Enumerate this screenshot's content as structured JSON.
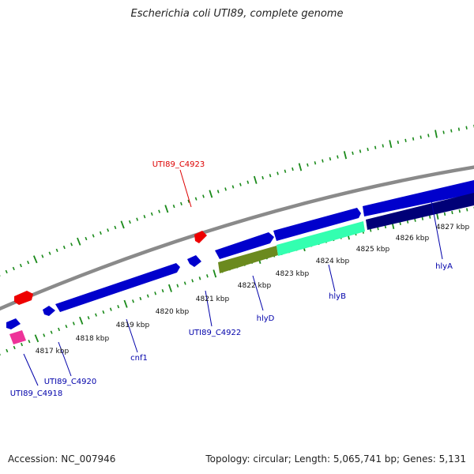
{
  "title": "Escherichia coli UTI89, complete genome",
  "footer": {
    "accession": "Accession: NC_007946",
    "summary": "Topology: circular; Length: 5,065,741 bp; Genes: 5,131"
  },
  "colors": {
    "backbone": "#8a8a8a",
    "tick_track": "#1a8a1a",
    "forward_gene": "#0000cc",
    "reverse_gene": "#ee0000",
    "hlyB": "#33ffb0",
    "hlyD": "#6b8a1e",
    "hlyA": "#000077",
    "rna": "#ee3399",
    "label_blue": "#0000aa",
    "label_red": "#dd0000"
  },
  "scale_labels": [
    "4817 kbp",
    "4818 kbp",
    "4819 kbp",
    "4820 kbp",
    "4821 kbp",
    "4822 kbp",
    "4823 kbp",
    "4824 kbp",
    "4825 kbp",
    "4826 kbp",
    "4827 kbp"
  ],
  "gene_labels": [
    "UTI89_C4923",
    "UTI89_C4918",
    "UTI89_C4920",
    "cnf1",
    "UTI89_C4922",
    "hlyD",
    "hlyB",
    "hlyA"
  ]
}
